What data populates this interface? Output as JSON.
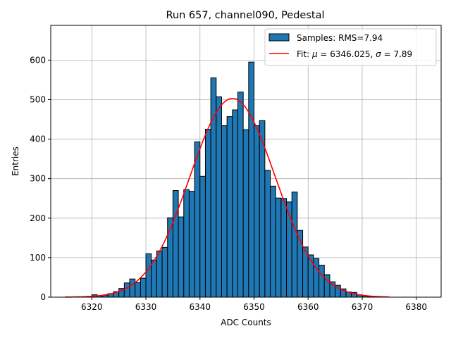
{
  "chart_data": {
    "type": "bar",
    "title": "Run 657, channel090, Pedestal",
    "xlabel": "ADC Counts",
    "ylabel": "Entries",
    "xlim": [
      6312.4,
      6384.6
    ],
    "ylim": [
      0,
      688
    ],
    "xticks": [
      6320,
      6330,
      6340,
      6350,
      6360,
      6370,
      6380
    ],
    "yticks": [
      0,
      100,
      200,
      300,
      400,
      500,
      600
    ],
    "grid": true,
    "legend_position": "top-right",
    "histogram": {
      "name": "Samples: RMS=7.94",
      "color": "#1f77b4",
      "edge_color": "#000000",
      "bin_width": 1,
      "bin_start": 6315,
      "counts": [
        0,
        0,
        1,
        1,
        2,
        6,
        3,
        5,
        9,
        14,
        22,
        36,
        46,
        37,
        48,
        110,
        94,
        117,
        126,
        201,
        270,
        203,
        272,
        268,
        393,
        306,
        425,
        555,
        507,
        434,
        457,
        474,
        519,
        424,
        595,
        434,
        447,
        321,
        281,
        251,
        250,
        241,
        266,
        169,
        127,
        107,
        98,
        81,
        57,
        39,
        30,
        21,
        13,
        12,
        6,
        3,
        2,
        1,
        0,
        0
      ]
    },
    "fit": {
      "name": "Fit: μ = 6346.025, σ = 7.89",
      "label_prefix": "Fit: ",
      "mu_symbol": "μ",
      "mu_value": " = 6346.025, ",
      "sigma_symbol": "σ",
      "sigma_value": " = 7.89",
      "color": "#ff0000",
      "mu": 6346.025,
      "sigma": 7.89,
      "amplitude": 503,
      "x_range": [
        6315,
        6375
      ]
    }
  }
}
